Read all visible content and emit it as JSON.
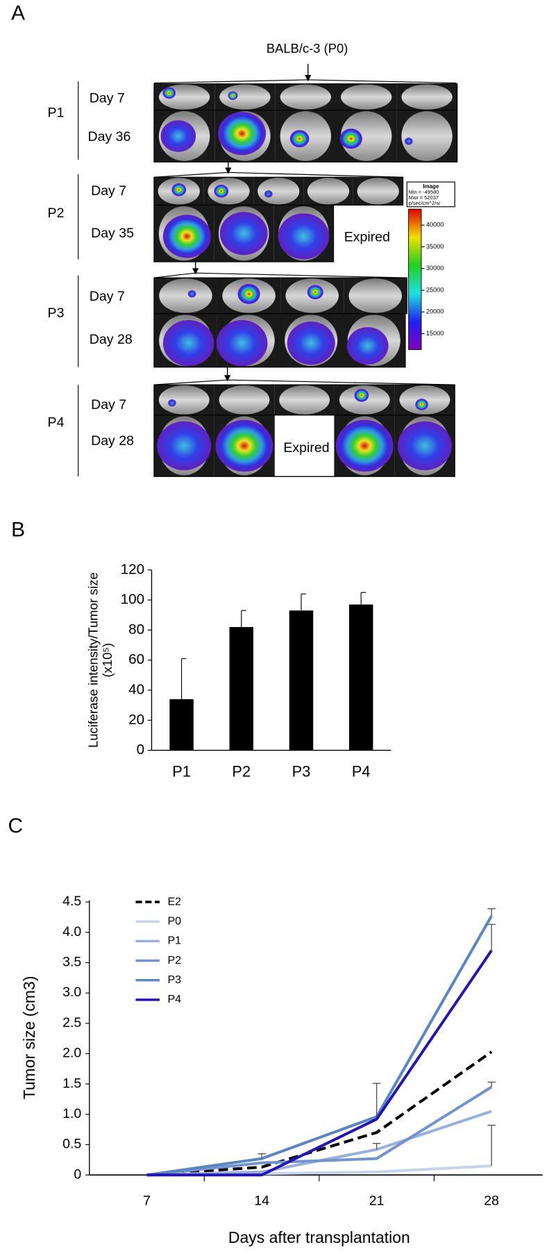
{
  "panel_labels": [
    "A",
    "B",
    "C"
  ],
  "panel_a": {
    "source": "BALB/c-3 (P0)",
    "groups": [
      {
        "name": "P1",
        "rows": [
          {
            "label": "Day 7"
          },
          {
            "label": "Day 36"
          }
        ]
      },
      {
        "name": "P2",
        "rows": [
          {
            "label": "Day 7"
          },
          {
            "label": "Day 35",
            "note": "Expired"
          }
        ]
      },
      {
        "name": "P3",
        "rows": [
          {
            "label": "Day 7"
          },
          {
            "label": "Day 28"
          }
        ]
      },
      {
        "name": "P4",
        "rows": [
          {
            "label": "Day 7"
          },
          {
            "label": "Day 28",
            "note": "Expired"
          }
        ]
      }
    ],
    "colorbar": {
      "title": "Image",
      "min": "Min = -49580",
      "max": "Max = 52037",
      "units": "p/sec/cm^2/sr",
      "ticks": [
        40000,
        35000,
        30000,
        25000,
        20000,
        15000
      ]
    }
  },
  "chart_data": [
    {
      "type": "bar",
      "ylabel": [
        "Luciferase intensity/Tumor size",
        "(x10⁵)"
      ],
      "categories": [
        "P1",
        "P2",
        "P3",
        "P4"
      ],
      "values": [
        34,
        82,
        93,
        97
      ],
      "errors": [
        27,
        11,
        11,
        8
      ],
      "color": "#000000",
      "ylim": [
        0,
        120
      ],
      "yticks": [
        0,
        20,
        40,
        60,
        80,
        100,
        120
      ]
    },
    {
      "type": "line",
      "xlabel": "Days after transplantation",
      "ylabel": "Tumor size (cm3)",
      "categories": [
        "7",
        "14",
        "21",
        "28"
      ],
      "ylim": [
        0,
        4.5
      ],
      "yticks": [
        0,
        0.5,
        {
          "value": 1,
          "label": "1.0"
        },
        1.5,
        {
          "value": 2,
          "label": "2.0"
        },
        2.5,
        {
          "value": 3,
          "label": "3.0"
        },
        3.5,
        {
          "value": 4,
          "label": "4.0"
        },
        4.5
      ],
      "legend": "upper left",
      "series": [
        {
          "name": "E2",
          "color": "#000000",
          "dashed": true,
          "values": [
            0,
            0.13,
            0.7,
            2.03
          ],
          "errors": [
            null,
            null,
            null,
            null
          ]
        },
        {
          "name": "P0",
          "color": "#c5d3ec",
          "values": [
            0,
            0.02,
            0.05,
            0.15
          ],
          "errors": [
            null,
            null,
            null,
            0.67
          ]
        },
        {
          "name": "P1",
          "color": "#9ab0dc",
          "values": [
            0,
            0.05,
            0.42,
            1.05
          ],
          "errors": [
            null,
            null,
            0.1,
            null
          ]
        },
        {
          "name": "P2",
          "color": "#7393cf",
          "values": [
            0,
            0.2,
            0.27,
            1.45
          ],
          "errors": [
            null,
            null,
            null,
            0.08
          ]
        },
        {
          "name": "P3",
          "color": "#5b86c2",
          "values": [
            0,
            0.27,
            0.96,
            4.27
          ],
          "errors": [
            null,
            0.08,
            0.55,
            0.12
          ]
        },
        {
          "name": "P4",
          "color": "#2414b0",
          "values": [
            0,
            0,
            0.92,
            3.7
          ],
          "errors": [
            null,
            null,
            null,
            0.43
          ]
        }
      ]
    }
  ]
}
